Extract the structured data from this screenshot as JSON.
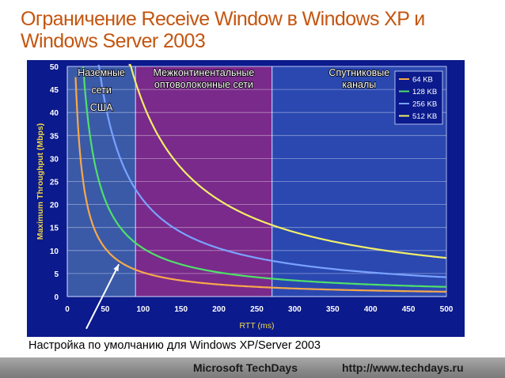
{
  "slide": {
    "title": "Ограничение  Receive Window  в Windows XP и Windows Server 2003",
    "caption": "Настройка по умолчанию для Windows XP/Server 2003"
  },
  "footer": {
    "brand": "Microsoft TechDays",
    "url": "http://www.techdays.ru"
  },
  "chart_data": {
    "type": "line",
    "title": "",
    "xlabel": "RTT (ms)",
    "ylabel": "Maximum Throughput (Mbps)",
    "xlim": [
      0,
      500
    ],
    "ylim": [
      0,
      50
    ],
    "xticks": [
      0,
      50,
      100,
      150,
      200,
      250,
      300,
      350,
      400,
      450,
      500
    ],
    "yticks": [
      0,
      5,
      10,
      15,
      20,
      25,
      30,
      35,
      40,
      45,
      50
    ],
    "grid": "horizontal",
    "legend_position": "top-right",
    "regions": [
      {
        "label": [
          "Наземные",
          "сети",
          "США"
        ],
        "x_range": [
          0,
          90
        ],
        "color": "#3a5aa8"
      },
      {
        "label": [
          "Межконтинентальные",
          "оптоволоконные сети"
        ],
        "x_range": [
          90,
          270
        ],
        "color": "#7a2a8a"
      },
      {
        "label": [
          "Спутниковые",
          "каналы"
        ],
        "x_range": [
          270,
          500
        ],
        "color": "#2a48b0"
      }
    ],
    "series": [
      {
        "name": "64 KB",
        "color": "#f7a84a",
        "window_kb": 64
      },
      {
        "name": "128 KB",
        "color": "#4fe06a",
        "window_kb": 128
      },
      {
        "name": "256 KB",
        "color": "#7aa2ff",
        "window_kb": 256
      },
      {
        "name": "512 KB",
        "color": "#f2ee6a",
        "window_kb": 512
      }
    ],
    "annotation_arrow": {
      "from": [
        25,
        -7
      ],
      "to": [
        68,
        7
      ]
    }
  }
}
